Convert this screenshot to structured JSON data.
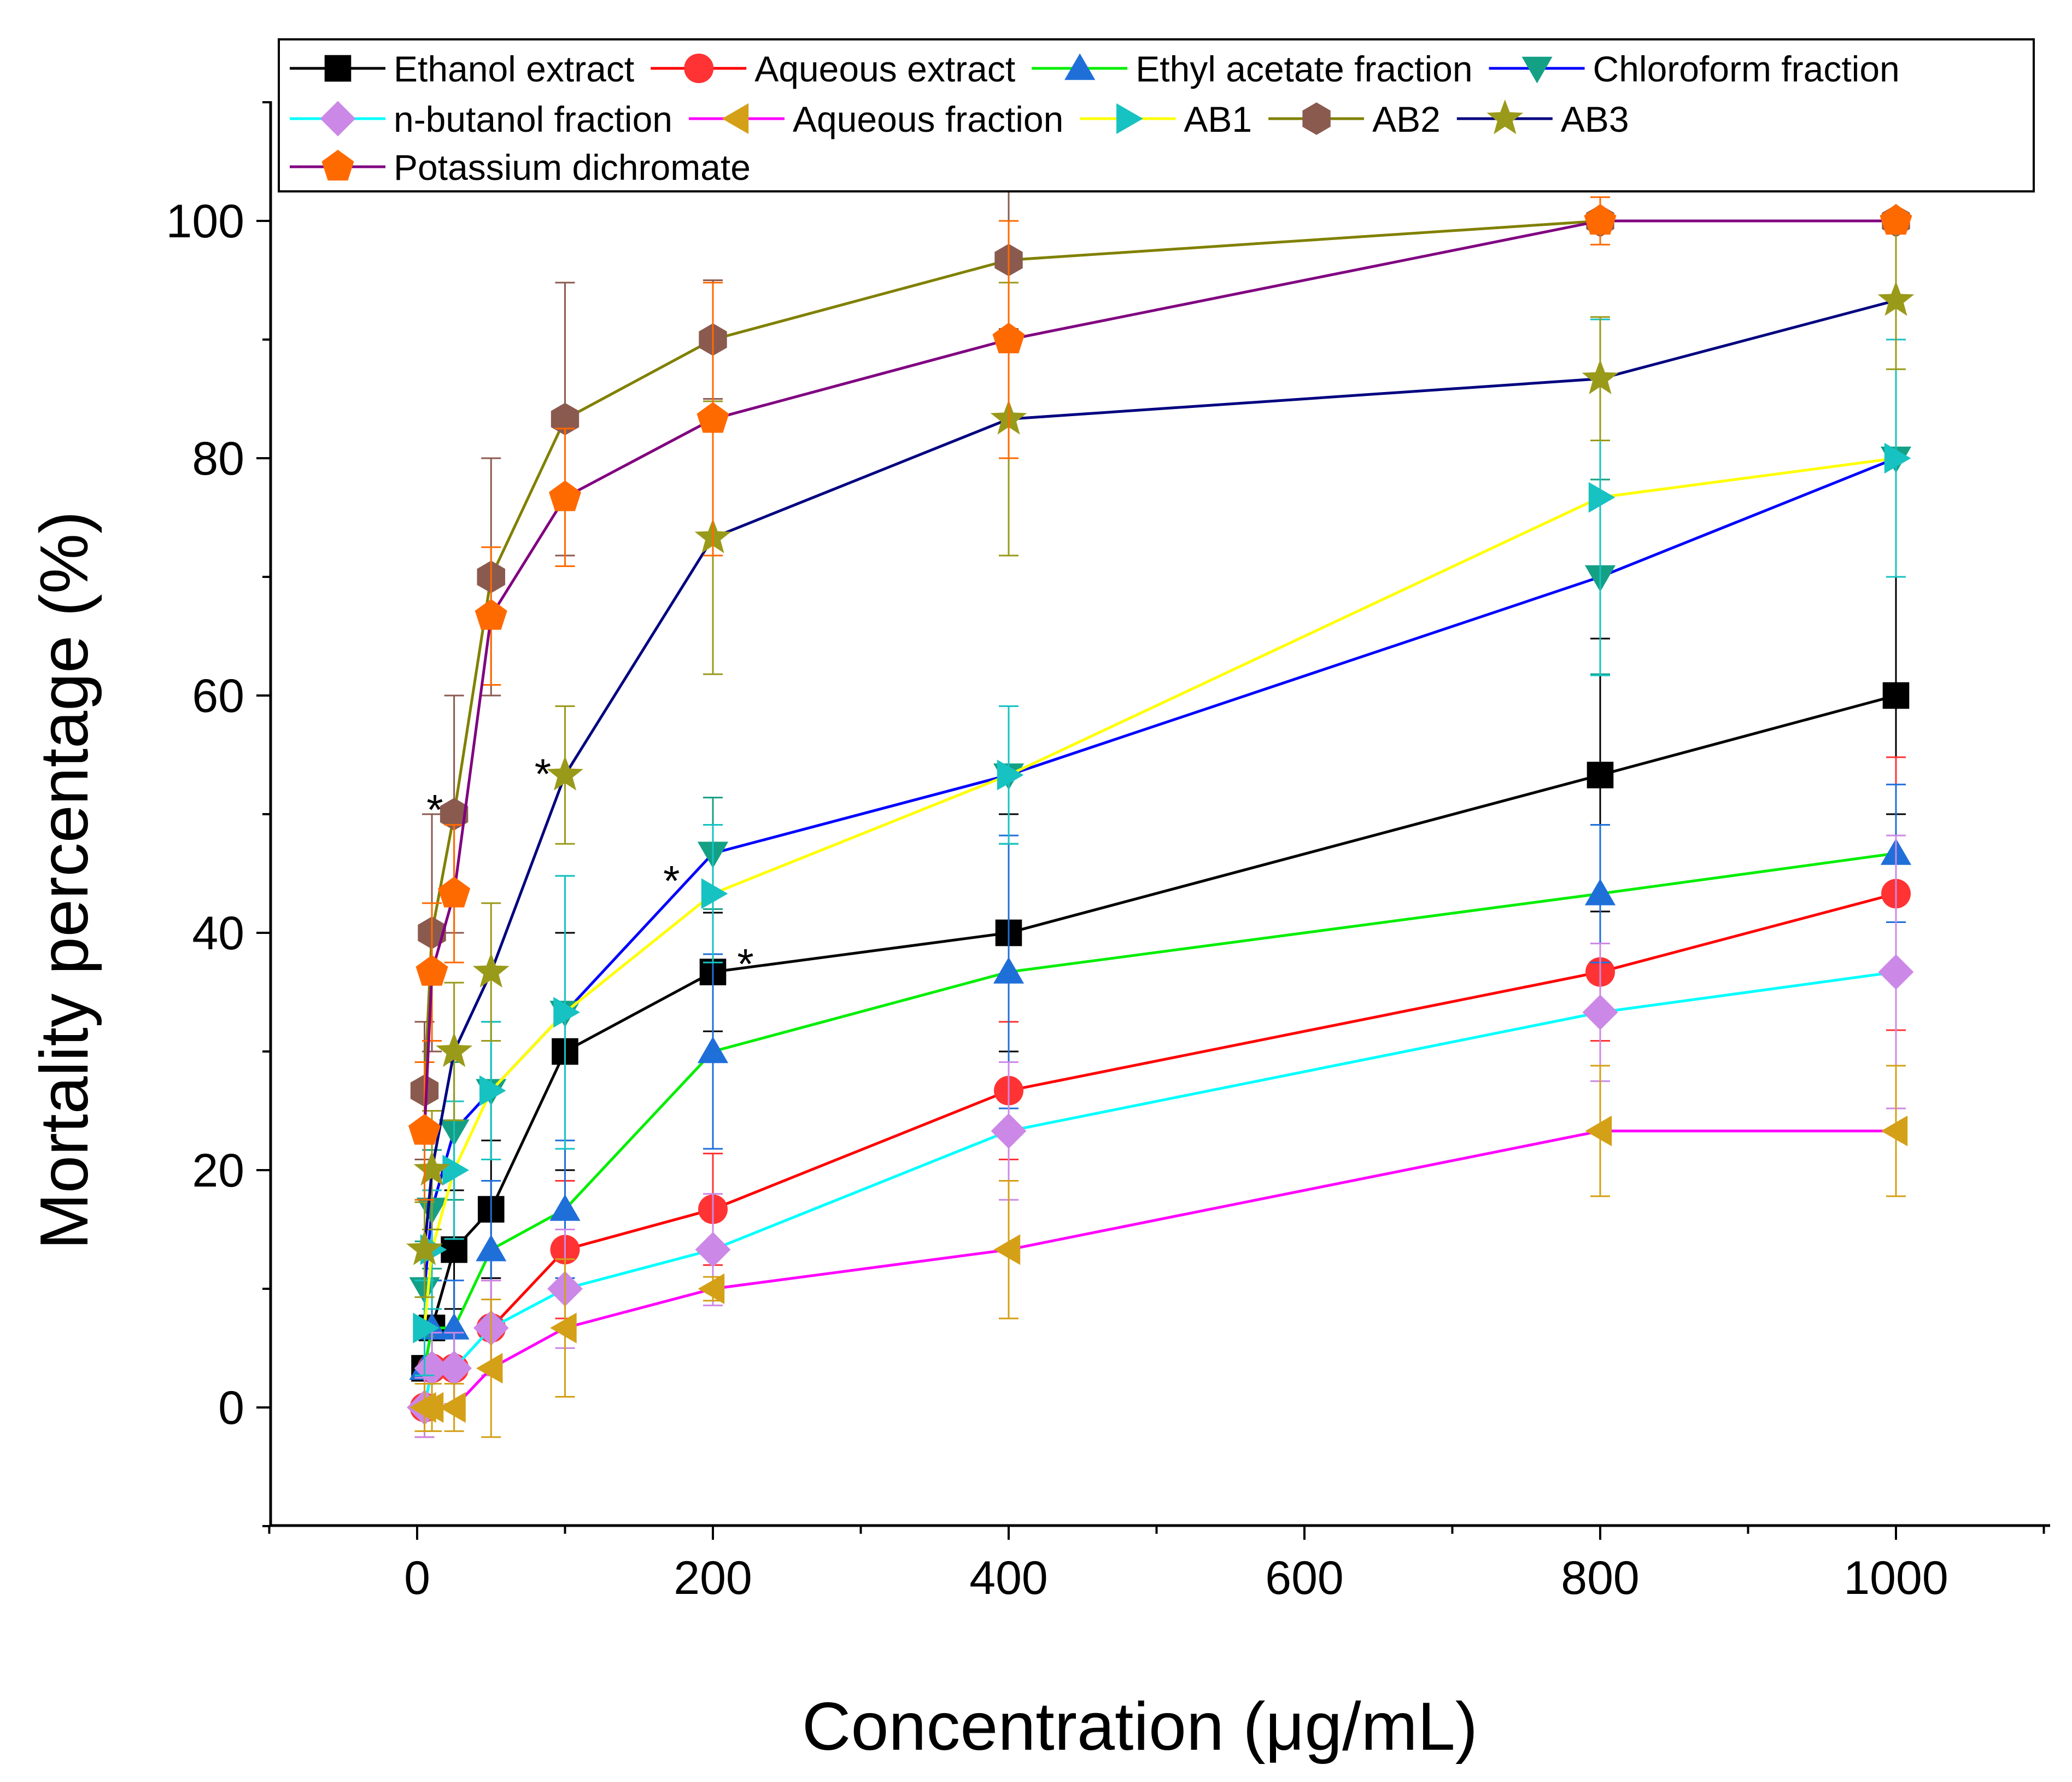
{
  "chart_data": {
    "type": "line",
    "title": "",
    "xlabel": "Concentration (μg/mL)",
    "ylabel": "Mortality percentage (%)",
    "xlim": [
      -100,
      1100
    ],
    "ylim": [
      -10,
      110
    ],
    "xticks": [
      0,
      200,
      400,
      600,
      800,
      1000
    ],
    "yticks": [
      0,
      20,
      40,
      60,
      80,
      100
    ],
    "x": [
      5,
      10,
      25,
      50,
      100,
      200,
      400,
      800,
      1000
    ],
    "legend_position": "top",
    "series": [
      {
        "name": "Ethanol extract",
        "color": "#000000",
        "marker": "square",
        "values": [
          3.3,
          6.7,
          13.3,
          16.7,
          30,
          36.7,
          40,
          53.3,
          60
        ],
        "errors": [
          3,
          4,
          5,
          5.8,
          10,
          5,
          10,
          11.5,
          10
        ]
      },
      {
        "name": "Aqueous extract",
        "color": "#ff0000",
        "markerColor": "#ff3333",
        "marker": "circle",
        "values": [
          0,
          3.3,
          3.3,
          6.7,
          13.3,
          16.7,
          26.7,
          36.7,
          43.3
        ],
        "errors": [
          2.5,
          3,
          3,
          4,
          5.8,
          4.7,
          5.8,
          5.8,
          11.5
        ]
      },
      {
        "name": "Ethyl acetate fraction",
        "color": "#00ee00",
        "markerColor": "#1f6fd9",
        "marker": "triangle-up",
        "values": [
          3.3,
          6.7,
          6.7,
          13.3,
          16.7,
          30,
          36.7,
          43.3,
          46.7
        ],
        "errors": [
          3,
          4,
          4,
          5.8,
          5.8,
          8.2,
          11.5,
          5.8,
          5.8
        ]
      },
      {
        "name": "Chloroform fraction",
        "color": "#0000ff",
        "markerColor": "#14a085",
        "marker": "triangle-down",
        "values": [
          10,
          16.7,
          23.3,
          26.7,
          33.3,
          46.7,
          53.3,
          70,
          80
        ],
        "errors": [
          4,
          5,
          5.8,
          5.8,
          11.5,
          4.7,
          5.8,
          8.2,
          10
        ]
      },
      {
        "name": "n-butanol fraction",
        "color": "#00ffff",
        "markerColor": "#cc88e6",
        "marker": "diamond",
        "values": [
          0,
          3.3,
          3.3,
          6.7,
          10,
          13.3,
          23.3,
          33.3,
          36.7
        ],
        "errors": [
          2.5,
          3,
          3,
          4,
          5,
          4.7,
          5.8,
          5.8,
          11.5
        ]
      },
      {
        "name": "Aqueous fraction",
        "color": "#ff00ff",
        "markerColor": "#d4a017",
        "marker": "triangle-left",
        "values": [
          0,
          0,
          0,
          3.3,
          6.7,
          10,
          13.3,
          23.3,
          23.3
        ],
        "errors": [
          2,
          2,
          2,
          5.8,
          5.8,
          1,
          5.8,
          5.5,
          5.5
        ]
      },
      {
        "name": "AB1",
        "color": "#ffff00",
        "markerColor": "#17c2c2",
        "marker": "triangle-right",
        "values": [
          6.7,
          13.3,
          20,
          26.7,
          33.3,
          43.3,
          53.3,
          76.7,
          80
        ],
        "errors": [
          4,
          5,
          5.8,
          5.8,
          11.5,
          5.8,
          5.8,
          15,
          10
        ]
      },
      {
        "name": "AB2",
        "color": "#808000",
        "markerColor": "#8b5a4f",
        "marker": "hexagon",
        "values": [
          26.7,
          40,
          50,
          70,
          83.3,
          90,
          96.7,
          100,
          100
        ],
        "errors": [
          5.8,
          10,
          10,
          10,
          11.5,
          5,
          5.8,
          0,
          0
        ]
      },
      {
        "name": "AB3",
        "color": "#000080",
        "markerColor": "#9a9a1a",
        "marker": "star",
        "values": [
          13.3,
          20,
          30,
          36.7,
          53.3,
          73.3,
          83.3,
          86.7,
          93.3
        ],
        "errors": [
          4,
          5,
          5.8,
          5.8,
          5.8,
          11.5,
          11.5,
          5.2,
          5.8
        ]
      },
      {
        "name": "Potassium dichromate",
        "color": "#800080",
        "markerColor": "#ff6a00",
        "marker": "pentagon",
        "values": [
          23.3,
          36.7,
          43.3,
          66.7,
          76.7,
          83.3,
          90,
          100,
          100
        ],
        "errors": [
          5.8,
          5.8,
          5.8,
          5.8,
          5.8,
          11.5,
          10,
          2,
          0
        ]
      }
    ],
    "annotations": [
      {
        "text": "*",
        "x": 12,
        "y": 51
      },
      {
        "text": "*",
        "x": 85,
        "y": 54
      },
      {
        "text": "*",
        "x": 172,
        "y": 45
      },
      {
        "text": "*",
        "x": 222,
        "y": 38
      }
    ]
  }
}
